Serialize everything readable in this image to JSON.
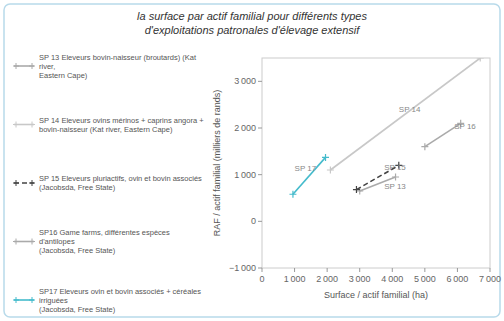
{
  "chart_data": {
    "type": "line",
    "title": "la surface par actif familial pour différents types\nd'exploitations patronales d'élevage extensif",
    "x_label": "Surface / actif familial (ha)",
    "y_label": "RAF / actif familial (milliers de rands)",
    "xlim": [
      0,
      7000
    ],
    "ylim": [
      -1000,
      3500
    ],
    "xticks": [
      0,
      {
        "value": 1000,
        "label": "1 000"
      },
      {
        "value": 2000,
        "label": "2 000"
      },
      {
        "value": 3000,
        "label": "3 000"
      },
      {
        "value": 4000,
        "label": "4 000"
      },
      {
        "value": 5000,
        "label": "5 000"
      },
      {
        "value": 6000,
        "label": "6 000"
      },
      {
        "value": 7000,
        "label": "7 000"
      }
    ],
    "yticks": [
      {
        "value": -1000,
        "label": "−1 000"
      },
      0,
      {
        "value": 1000,
        "label": "1 000"
      },
      {
        "value": 2000,
        "label": "2 000"
      },
      {
        "value": 3000,
        "label": "3 000"
      }
    ],
    "grid": false,
    "legend": "left",
    "series": [
      {
        "name": "SP 13 Eleveurs bovin-naisseur (broutards) (Kat river,\nEastern Cape)",
        "color": "#aaaaaa",
        "line_style": "solid",
        "marker": "plus",
        "x": [
          3000,
          4100
        ],
        "values": [
          650,
          950
        ]
      },
      {
        "name": "SP 14 Eleveurs ovins mérinos + caprins angora +\nbovin-naisseur (Kat river, Eastern Cape)",
        "color": "#c8c8c8",
        "line_style": "solid",
        "marker": "plus",
        "x": [
          2100,
          6700
        ],
        "values": [
          1100,
          3500
        ]
      },
      {
        "name": "SP 15 Eleveurs pluriactifs, ovin et bovin associés\n(Jacobsda, Free State)",
        "color": "#444444",
        "line_style": "dashed",
        "marker": "plus",
        "x": [
          2900,
          4200
        ],
        "values": [
          680,
          1200
        ]
      },
      {
        "name": "SP16 Game farms, différentes espèces d'antilopes\n(Jacobsda, Free State)",
        "color": "#aaaaaa",
        "line_style": "solid",
        "marker": "plus",
        "x": [
          5000,
          6100
        ],
        "values": [
          1600,
          2100
        ]
      },
      {
        "name": "SP17 Eleveurs ovin et bovin associés + céréales irriguées\n(Jacobsda, Free State)",
        "color": "#44bbcc",
        "line_style": "solid",
        "marker": "plus",
        "x": [
          950,
          1950
        ],
        "values": [
          580,
          1370
        ]
      }
    ],
    "annotations": [
      {
        "text": "SP 13",
        "x": 3750,
        "y": 700
      },
      {
        "text": "SP 14",
        "x": 4200,
        "y": 2350
      },
      {
        "text": "SP 15",
        "x": 3750,
        "y": 1100
      },
      {
        "text": "SP 16",
        "x": 5900,
        "y": 1970
      },
      {
        "text": "SP 17",
        "x": 1000,
        "y": 1080
      }
    ]
  }
}
